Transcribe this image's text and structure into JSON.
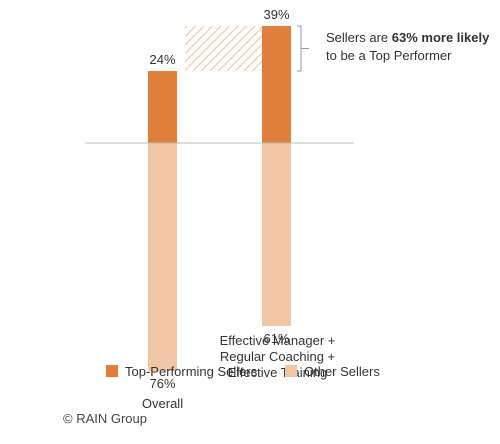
{
  "chart_data": {
    "type": "bar",
    "layout": "diverging-stacked",
    "categories": [
      "Overall",
      "Effective Manager +\nRegular Coaching +\nEffective Training"
    ],
    "series": [
      {
        "name": "Top-Performing Sellers",
        "direction": "up",
        "color": "#E07F3C",
        "values": [
          24,
          39
        ],
        "labels": [
          "24%",
          "39%"
        ]
      },
      {
        "name": "Other Sellers",
        "direction": "down",
        "color": "#F1C6A4",
        "values": [
          76,
          61
        ],
        "labels": [
          "76%",
          "61%"
        ]
      }
    ],
    "ylim": [
      -100,
      100
    ],
    "grid": false,
    "legend_position": "bottom-left",
    "annotation": {
      "text_prefix": "Sellers are ",
      "text_bold": "63% more likely",
      "text_line2": "to be a Top Performer",
      "comparison_value_from": 24,
      "comparison_value_to": 39,
      "hatch_color": "#F3C9A8"
    }
  },
  "footer": {
    "copyright": "© RAIN Group"
  }
}
